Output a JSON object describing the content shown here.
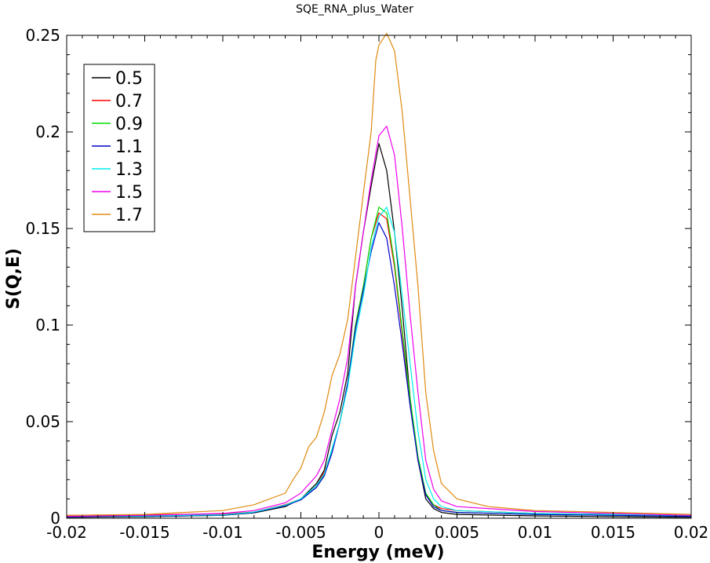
{
  "chart_data": {
    "type": "line",
    "title": "SQE_RNA_plus_Water",
    "xlabel": "Energy (meV)",
    "ylabel": "S(Q,E)",
    "xlim": [
      -0.02,
      0.02
    ],
    "ylim": [
      0,
      0.25
    ],
    "x_ticks": [
      "-0.02",
      "-0.015",
      "-0.01",
      "-0.005",
      "0",
      "0.005",
      "0.01",
      "0.015",
      "0.02"
    ],
    "y_ticks": [
      "0",
      "0.05",
      "0.1",
      "0.15",
      "0.2",
      "0.25"
    ],
    "grid": false,
    "legend_position": "top-left",
    "series": [
      {
        "name": "0.5",
        "color": "#000000",
        "points": [
          [
            -0.02,
            0.0005
          ],
          [
            -0.015,
            0.0008
          ],
          [
            -0.01,
            0.0015
          ],
          [
            -0.008,
            0.0028
          ],
          [
            -0.006,
            0.006
          ],
          [
            -0.005,
            0.01
          ],
          [
            -0.004,
            0.018
          ],
          [
            -0.0035,
            0.025
          ],
          [
            -0.003,
            0.043
          ],
          [
            -0.0025,
            0.055
          ],
          [
            -0.002,
            0.075
          ],
          [
            -0.0015,
            0.12
          ],
          [
            -0.001,
            0.148
          ],
          [
            -0.0005,
            0.172
          ],
          [
            0,
            0.194
          ],
          [
            0.0005,
            0.18
          ],
          [
            0.001,
            0.148
          ],
          [
            0.0015,
            0.108
          ],
          [
            0.002,
            0.062
          ],
          [
            0.0025,
            0.03
          ],
          [
            0.003,
            0.01
          ],
          [
            0.0035,
            0.005
          ],
          [
            0.004,
            0.003
          ],
          [
            0.005,
            0.002
          ],
          [
            0.01,
            0.0012
          ],
          [
            0.015,
            0.0008
          ],
          [
            0.02,
            0.0005
          ]
        ]
      },
      {
        "name": "0.7",
        "color": "#ff0000",
        "points": [
          [
            -0.02,
            0.0015
          ],
          [
            -0.015,
            0.0018
          ],
          [
            -0.01,
            0.0022
          ],
          [
            -0.008,
            0.0032
          ],
          [
            -0.006,
            0.007
          ],
          [
            -0.005,
            0.01
          ],
          [
            -0.004,
            0.017
          ],
          [
            -0.0035,
            0.024
          ],
          [
            -0.003,
            0.035
          ],
          [
            -0.0025,
            0.05
          ],
          [
            -0.002,
            0.07
          ],
          [
            -0.0015,
            0.1
          ],
          [
            -0.001,
            0.12
          ],
          [
            -0.0005,
            0.145
          ],
          [
            0,
            0.158
          ],
          [
            0.0005,
            0.155
          ],
          [
            0.001,
            0.13
          ],
          [
            0.0015,
            0.095
          ],
          [
            0.002,
            0.06
          ],
          [
            0.0025,
            0.03
          ],
          [
            0.003,
            0.012
          ],
          [
            0.0035,
            0.007
          ],
          [
            0.004,
            0.005
          ],
          [
            0.005,
            0.004
          ],
          [
            0.01,
            0.0025
          ],
          [
            0.015,
            0.002
          ],
          [
            0.02,
            0.0015
          ]
        ]
      },
      {
        "name": "0.9",
        "color": "#00dd00",
        "points": [
          [
            -0.02,
            0.0008
          ],
          [
            -0.015,
            0.001
          ],
          [
            -0.01,
            0.0015
          ],
          [
            -0.008,
            0.003
          ],
          [
            -0.006,
            0.0065
          ],
          [
            -0.005,
            0.0095
          ],
          [
            -0.004,
            0.016
          ],
          [
            -0.0035,
            0.023
          ],
          [
            -0.003,
            0.035
          ],
          [
            -0.0025,
            0.05
          ],
          [
            -0.002,
            0.07
          ],
          [
            -0.0015,
            0.1
          ],
          [
            -0.001,
            0.12
          ],
          [
            -0.0005,
            0.145
          ],
          [
            0,
            0.161
          ],
          [
            0.0005,
            0.158
          ],
          [
            0.001,
            0.132
          ],
          [
            0.0015,
            0.097
          ],
          [
            0.002,
            0.062
          ],
          [
            0.0025,
            0.032
          ],
          [
            0.003,
            0.013
          ],
          [
            0.0035,
            0.007
          ],
          [
            0.004,
            0.004
          ],
          [
            0.005,
            0.003
          ],
          [
            0.01,
            0.002
          ],
          [
            0.015,
            0.0015
          ],
          [
            0.02,
            0.001
          ]
        ]
      },
      {
        "name": "1.1",
        "color": "#0000cc",
        "points": [
          [
            -0.02,
            0.0008
          ],
          [
            -0.015,
            0.001
          ],
          [
            -0.01,
            0.0016
          ],
          [
            -0.008,
            0.003
          ],
          [
            -0.006,
            0.0065
          ],
          [
            -0.005,
            0.0095
          ],
          [
            -0.004,
            0.016
          ],
          [
            -0.0035,
            0.022
          ],
          [
            -0.003,
            0.034
          ],
          [
            -0.0025,
            0.05
          ],
          [
            -0.002,
            0.07
          ],
          [
            -0.0015,
            0.098
          ],
          [
            -0.001,
            0.118
          ],
          [
            -0.0005,
            0.138
          ],
          [
            0,
            0.153
          ],
          [
            0.0005,
            0.145
          ],
          [
            0.001,
            0.12
          ],
          [
            0.0015,
            0.09
          ],
          [
            0.002,
            0.058
          ],
          [
            0.0025,
            0.03
          ],
          [
            0.003,
            0.012
          ],
          [
            0.0035,
            0.006
          ],
          [
            0.004,
            0.004
          ],
          [
            0.005,
            0.003
          ],
          [
            0.01,
            0.002
          ],
          [
            0.015,
            0.0015
          ],
          [
            0.02,
            0.001
          ]
        ]
      },
      {
        "name": "1.3",
        "color": "#00eeee",
        "points": [
          [
            -0.02,
            0.001
          ],
          [
            -0.015,
            0.0012
          ],
          [
            -0.01,
            0.0018
          ],
          [
            -0.008,
            0.0032
          ],
          [
            -0.006,
            0.0068
          ],
          [
            -0.005,
            0.01
          ],
          [
            -0.004,
            0.017
          ],
          [
            -0.0035,
            0.023
          ],
          [
            -0.003,
            0.036
          ],
          [
            -0.0025,
            0.05
          ],
          [
            -0.002,
            0.068
          ],
          [
            -0.0015,
            0.095
          ],
          [
            -0.001,
            0.115
          ],
          [
            -0.0005,
            0.14
          ],
          [
            0,
            0.156
          ],
          [
            0.0005,
            0.161
          ],
          [
            0.001,
            0.148
          ],
          [
            0.0015,
            0.115
          ],
          [
            0.002,
            0.08
          ],
          [
            0.0025,
            0.045
          ],
          [
            0.003,
            0.02
          ],
          [
            0.0035,
            0.01
          ],
          [
            0.004,
            0.006
          ],
          [
            0.005,
            0.004
          ],
          [
            0.01,
            0.0025
          ],
          [
            0.015,
            0.002
          ],
          [
            0.02,
            0.0015
          ]
        ]
      },
      {
        "name": "1.5",
        "color": "#ee00ee",
        "points": [
          [
            -0.02,
            0.001
          ],
          [
            -0.015,
            0.0015
          ],
          [
            -0.01,
            0.0025
          ],
          [
            -0.008,
            0.004
          ],
          [
            -0.006,
            0.008
          ],
          [
            -0.005,
            0.013
          ],
          [
            -0.004,
            0.022
          ],
          [
            -0.0035,
            0.03
          ],
          [
            -0.003,
            0.046
          ],
          [
            -0.0025,
            0.062
          ],
          [
            -0.002,
            0.083
          ],
          [
            -0.0015,
            0.12
          ],
          [
            -0.001,
            0.148
          ],
          [
            -0.0005,
            0.175
          ],
          [
            0,
            0.198
          ],
          [
            0.0005,
            0.203
          ],
          [
            0.001,
            0.188
          ],
          [
            0.0015,
            0.15
          ],
          [
            0.002,
            0.105
          ],
          [
            0.0025,
            0.065
          ],
          [
            0.003,
            0.03
          ],
          [
            0.0035,
            0.015
          ],
          [
            0.004,
            0.009
          ],
          [
            0.005,
            0.006
          ],
          [
            0.01,
            0.0035
          ],
          [
            0.015,
            0.0025
          ],
          [
            0.02,
            0.0015
          ]
        ]
      },
      {
        "name": "1.7",
        "color": "#e08a10",
        "points": [
          [
            -0.02,
            0.0015
          ],
          [
            -0.015,
            0.002
          ],
          [
            -0.01,
            0.004
          ],
          [
            -0.008,
            0.007
          ],
          [
            -0.006,
            0.013
          ],
          [
            -0.0055,
            0.02
          ],
          [
            -0.005,
            0.026
          ],
          [
            -0.0045,
            0.037
          ],
          [
            -0.004,
            0.042
          ],
          [
            -0.0035,
            0.055
          ],
          [
            -0.003,
            0.074
          ],
          [
            -0.0025,
            0.085
          ],
          [
            -0.002,
            0.103
          ],
          [
            -0.0015,
            0.135
          ],
          [
            -0.001,
            0.168
          ],
          [
            -0.0005,
            0.2
          ],
          [
            -0.0002,
            0.237
          ],
          [
            0,
            0.245
          ],
          [
            0.0005,
            0.251
          ],
          [
            0.001,
            0.242
          ],
          [
            0.0015,
            0.21
          ],
          [
            0.002,
            0.165
          ],
          [
            0.0025,
            0.12
          ],
          [
            0.003,
            0.065
          ],
          [
            0.0035,
            0.035
          ],
          [
            0.004,
            0.018
          ],
          [
            0.005,
            0.01
          ],
          [
            0.007,
            0.006
          ],
          [
            0.01,
            0.004
          ],
          [
            0.015,
            0.003
          ],
          [
            0.02,
            0.002
          ]
        ]
      }
    ]
  }
}
